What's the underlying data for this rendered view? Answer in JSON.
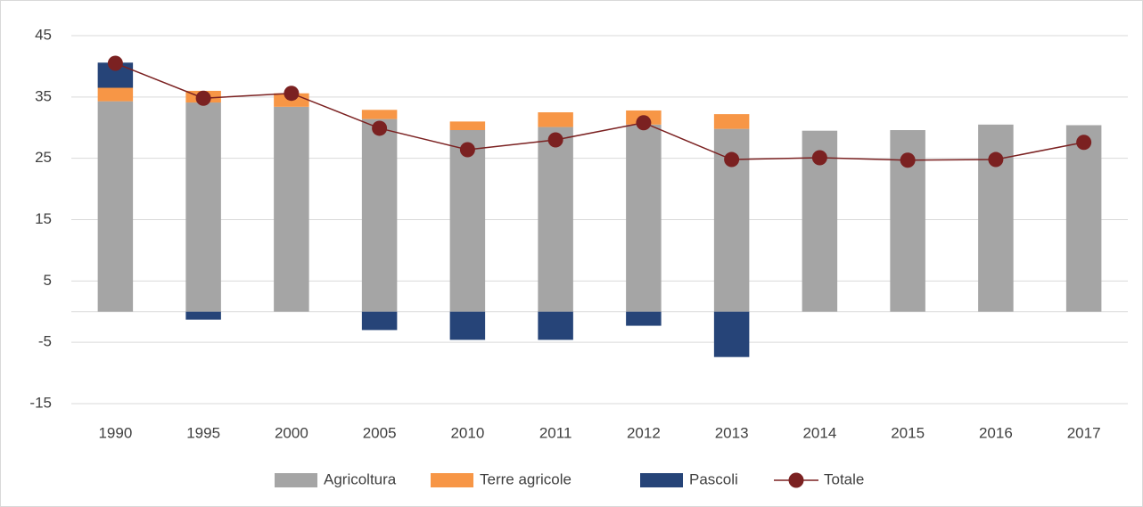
{
  "chart_data": {
    "type": "stacked-bar-line",
    "categories": [
      "1990",
      "1995",
      "2000",
      "2005",
      "2010",
      "2011",
      "2012",
      "2013",
      "2014",
      "2015",
      "2016",
      "2017"
    ],
    "series": [
      {
        "name": "Agricoltura",
        "type": "bar",
        "color": "#a5a5a5",
        "values": [
          34.3,
          34.1,
          33.4,
          31.4,
          29.6,
          30.1,
          30.5,
          29.8,
          29.5,
          29.6,
          30.5,
          30.4
        ]
      },
      {
        "name": "Terre agricole",
        "type": "bar",
        "color": "#f79646",
        "values": [
          2.2,
          1.9,
          2.2,
          1.5,
          1.4,
          2.4,
          2.3,
          2.4,
          0,
          0,
          0,
          0
        ]
      },
      {
        "name": "Pascoli",
        "type": "bar",
        "color": "#264478",
        "values": [
          4.1,
          -1.3,
          0,
          -3.0,
          -4.6,
          -4.6,
          -2.3,
          -7.4,
          0,
          0,
          0,
          0
        ]
      },
      {
        "name": "Totale",
        "type": "line",
        "color": "#7b2121",
        "values": [
          40.5,
          34.8,
          35.6,
          29.9,
          26.4,
          28.0,
          30.8,
          24.8,
          25.1,
          24.7,
          24.8,
          27.6
        ]
      }
    ],
    "ylim": [
      -15,
      45
    ],
    "yticks": [
      -15,
      -5,
      5,
      15,
      25,
      35,
      45
    ],
    "grid": true,
    "legend": "bottom"
  }
}
